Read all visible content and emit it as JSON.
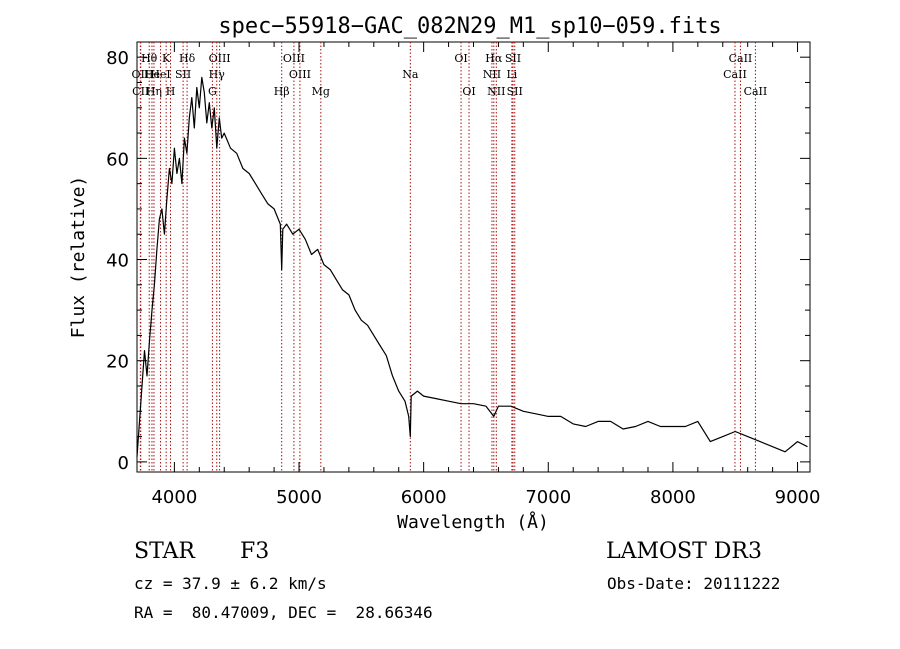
{
  "chart_data": {
    "type": "line",
    "title": "spec−55918−GAC_082N29_M1_sp10−059.fits",
    "xlabel": "Wavelength (Å)",
    "ylabel": "Flux (relative)",
    "xlim": [
      3700,
      9100
    ],
    "ylim": [
      -2,
      83
    ],
    "xticks": [
      4000,
      5000,
      6000,
      7000,
      8000,
      9000
    ],
    "yticks": [
      0,
      20,
      40,
      60,
      80
    ],
    "grid": false,
    "colors": {
      "spectrum": "#000000",
      "lines": "#aa1111",
      "frame": "#000000"
    },
    "series": [
      {
        "name": "flux",
        "x": [
          3700,
          3720,
          3740,
          3760,
          3780,
          3800,
          3820,
          3840,
          3860,
          3880,
          3900,
          3920,
          3940,
          3960,
          3980,
          4000,
          4020,
          4040,
          4060,
          4080,
          4100,
          4120,
          4140,
          4160,
          4180,
          4200,
          4220,
          4240,
          4260,
          4280,
          4300,
          4320,
          4340,
          4360,
          4380,
          4400,
          4450,
          4500,
          4550,
          4600,
          4650,
          4700,
          4750,
          4800,
          4850,
          4861,
          4870,
          4900,
          4950,
          5000,
          5050,
          5100,
          5150,
          5200,
          5250,
          5300,
          5350,
          5400,
          5450,
          5500,
          5550,
          5600,
          5650,
          5700,
          5750,
          5800,
          5850,
          5880,
          5893,
          5900,
          5950,
          6000,
          6100,
          6200,
          6300,
          6400,
          6500,
          6563,
          6600,
          6700,
          6800,
          6900,
          7000,
          7100,
          7200,
          7300,
          7400,
          7500,
          7600,
          7700,
          7800,
          7900,
          8000,
          8100,
          8200,
          8300,
          8400,
          8500,
          8600,
          8700,
          8800,
          8900,
          9000,
          9080
        ],
        "y": [
          1,
          8,
          15,
          22,
          17,
          24,
          30,
          35,
          42,
          48,
          50,
          45,
          52,
          58,
          55,
          62,
          57,
          60,
          55,
          64,
          61,
          68,
          72,
          66,
          74,
          70,
          76,
          73,
          67,
          71,
          66,
          70,
          62,
          68,
          64,
          65,
          62,
          61,
          58,
          57,
          55,
          53,
          51,
          50,
          47,
          38,
          46,
          47,
          45,
          46,
          44,
          41,
          42,
          39,
          38,
          36,
          34,
          33,
          30,
          28,
          27,
          25,
          23,
          21,
          17,
          14,
          12,
          9,
          5,
          13,
          14,
          13,
          12.5,
          12,
          11.5,
          11.5,
          11,
          9,
          11,
          11,
          10,
          9.5,
          9,
          9,
          7.5,
          7,
          8,
          8,
          6.5,
          7,
          8,
          7,
          7,
          7,
          8,
          4,
          5,
          6,
          5,
          4,
          3,
          2,
          4,
          3
        ]
      }
    ],
    "line_markers": [
      {
        "label": "Hθ",
        "wavelength": 3798,
        "row": 1
      },
      {
        "label": "OII",
        "wavelength": 3727,
        "row": 2
      },
      {
        "label": "CII",
        "wavelength": 3730,
        "row": 3
      },
      {
        "label": "He",
        "wavelength": 3820,
        "row": 2
      },
      {
        "label": "Hη",
        "wavelength": 3836,
        "row": 3
      },
      {
        "label": "K",
        "wavelength": 3934,
        "row": 1
      },
      {
        "label": "HeI",
        "wavelength": 3889,
        "row": 2
      },
      {
        "label": "H",
        "wavelength": 3969,
        "row": 3
      },
      {
        "label": "SII",
        "wavelength": 4070,
        "row": 2
      },
      {
        "label": "Hδ",
        "wavelength": 4102,
        "row": 1
      },
      {
        "label": "OIII",
        "wavelength": 4363,
        "row": 1
      },
      {
        "label": "Hγ",
        "wavelength": 4340,
        "row": 2
      },
      {
        "label": "G",
        "wavelength": 4305,
        "row": 3
      },
      {
        "label": "Hβ",
        "wavelength": 4861,
        "row": 3
      },
      {
        "label": "OIII",
        "wavelength": 4959,
        "row": 1
      },
      {
        "label": "OIII",
        "wavelength": 5007,
        "row": 2
      },
      {
        "label": "Mg",
        "wavelength": 5175,
        "row": 3
      },
      {
        "label": "Na",
        "wavelength": 5893,
        "row": 2
      },
      {
        "label": "OI",
        "wavelength": 6300,
        "row": 1
      },
      {
        "label": "OI",
        "wavelength": 6364,
        "row": 3
      },
      {
        "label": "Hα",
        "wavelength": 6563,
        "row": 1
      },
      {
        "label": "NII",
        "wavelength": 6548,
        "row": 2
      },
      {
        "label": "NII",
        "wavelength": 6583,
        "row": 3
      },
      {
        "label": "SII",
        "wavelength": 6717,
        "row": 1
      },
      {
        "label": "Li",
        "wavelength": 6708,
        "row": 2
      },
      {
        "label": "SII",
        "wavelength": 6731,
        "row": 3
      },
      {
        "label": "CaII",
        "wavelength": 8542,
        "row": 1
      },
      {
        "label": "CaII",
        "wavelength": 8498,
        "row": 2
      },
      {
        "label": "CaII",
        "wavelength": 8662,
        "row": 3
      }
    ]
  },
  "info": {
    "object_class": "STAR",
    "subclass": "F3",
    "survey": "LAMOST DR3",
    "redshift": "cz = 37.9 ± 6.2 km/s",
    "obs_date": "Obs-Date: 20111222",
    "coords": "RA =  80.47009, DEC =  28.66346"
  }
}
